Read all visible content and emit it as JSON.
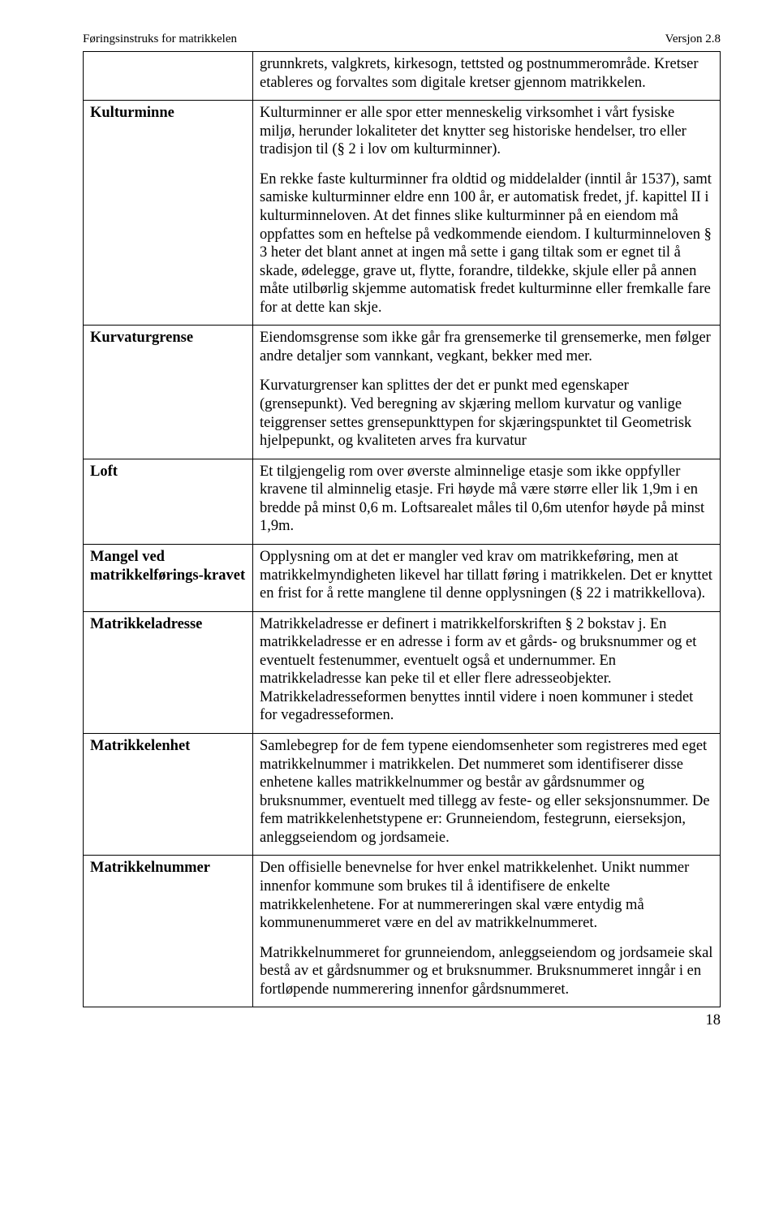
{
  "header": {
    "left": "Føringsinstruks for matrikkelen",
    "right": "Versjon 2.8"
  },
  "rows": [
    {
      "term": "",
      "paragraphs": [
        "grunnkrets, valgkrets, kirkesogn, tettsted og postnummerområde. Kretser etableres og forvaltes som digitale kretser gjennom matrikkelen."
      ]
    },
    {
      "term": "Kulturminne",
      "paragraphs": [
        "Kulturminner er alle spor etter menneskelig virksomhet i vårt fysiske miljø, herunder lokaliteter det knytter seg historiske hendelser, tro eller tradisjon til (§ 2 i lov om kulturminner).",
        "En rekke faste kulturminner fra oldtid og middelalder (inntil år 1537), samt samiske kulturminner eldre enn 100 år, er automatisk fredet, jf. kapittel II i kulturminneloven. At det finnes slike kulturminner på en eiendom må oppfattes som en heftelse på vedkommende eiendom. I kulturminneloven § 3 heter det blant annet at ingen må sette i gang tiltak som er egnet til å skade, ødelegge, grave ut, flytte, forandre, tildekke, skjule eller på annen måte utilbørlig skjemme automatisk fredet kulturminne eller fremkalle fare for at dette kan skje."
      ]
    },
    {
      "term": "Kurvaturgrense",
      "paragraphs": [
        "Eiendomsgrense som ikke går fra grensemerke til grensemerke, men følger andre detaljer som vannkant, vegkant, bekker med mer.",
        "Kurvaturgrenser kan splittes der det er punkt med egenskaper (grensepunkt). Ved beregning av skjæring mellom kurvatur og vanlige teiggrenser settes grensepunkttypen for skjæringspunktet til Geometrisk hjelpepunkt, og kvaliteten arves fra kurvatur"
      ]
    },
    {
      "term": "Loft",
      "paragraphs": [
        "Et tilgjengelig rom over øverste alminnelige etasje som ikke oppfyller kravene til alminnelig etasje. Fri høyde må være større eller lik 1,9m i en bredde på minst 0,6 m. Loftsarealet måles til 0,6m utenfor høyde på minst 1,9m."
      ]
    },
    {
      "term": "Mangel ved matrikkelførings-kravet",
      "paragraphs": [
        "Opplysning om at det er mangler  ved krav om matrikkeføring, men at matrikkelmyndigheten likevel har tillatt føring i matrikkelen. Det er knyttet en frist for å rette manglene til denne opplysningen (§ 22 i matrikkellova)."
      ]
    },
    {
      "term": "Matrikkeladresse",
      "paragraphs": [
        "Matrikkeladresse er definert i matrikkelforskriften § 2 bokstav j. En matrikkeladresse er en adresse i form av et gårds- og bruksnummer og et eventuelt festenummer, eventuelt også et undernummer. En matrikkeladresse kan peke til et eller flere adresseobjekter. Matrikkeladresseformen benyttes inntil videre i noen kommuner i stedet for vegadresseformen."
      ]
    },
    {
      "term": "Matrikkelenhet",
      "paragraphs": [
        "Samlebegrep for de fem typene eiendomsenheter som registreres med eget matrikkelnummer i matrikkelen. Det nummeret som identifiserer disse enhetene kalles matrikkelnummer og består av gårdsnummer og bruksnummer, eventuelt med tillegg av feste- og eller seksjonsnummer. De fem matrikkelenhetstypene er: Grunneiendom, festegrunn, eierseksjon, anleggseiendom og jordsameie."
      ]
    },
    {
      "term": "Matrikkelnummer",
      "paragraphs": [
        "Den offisielle benevnelse for hver enkel matrikkelenhet. Unikt nummer innenfor kommune som brukes til å identifisere de enkelte matrikkelenhetene. For at nummereringen skal være entydig må kommunenummeret være en del av matrikkelnummeret.",
        "Matrikkelnummeret for grunneiendom, anleggseiendom og jordsameie skal bestå av et gårdsnummer og et bruksnummer. Bruksnummeret inngår i en fortløpende nummerering innenfor gårdsnummeret."
      ]
    }
  ],
  "page_number": "18"
}
